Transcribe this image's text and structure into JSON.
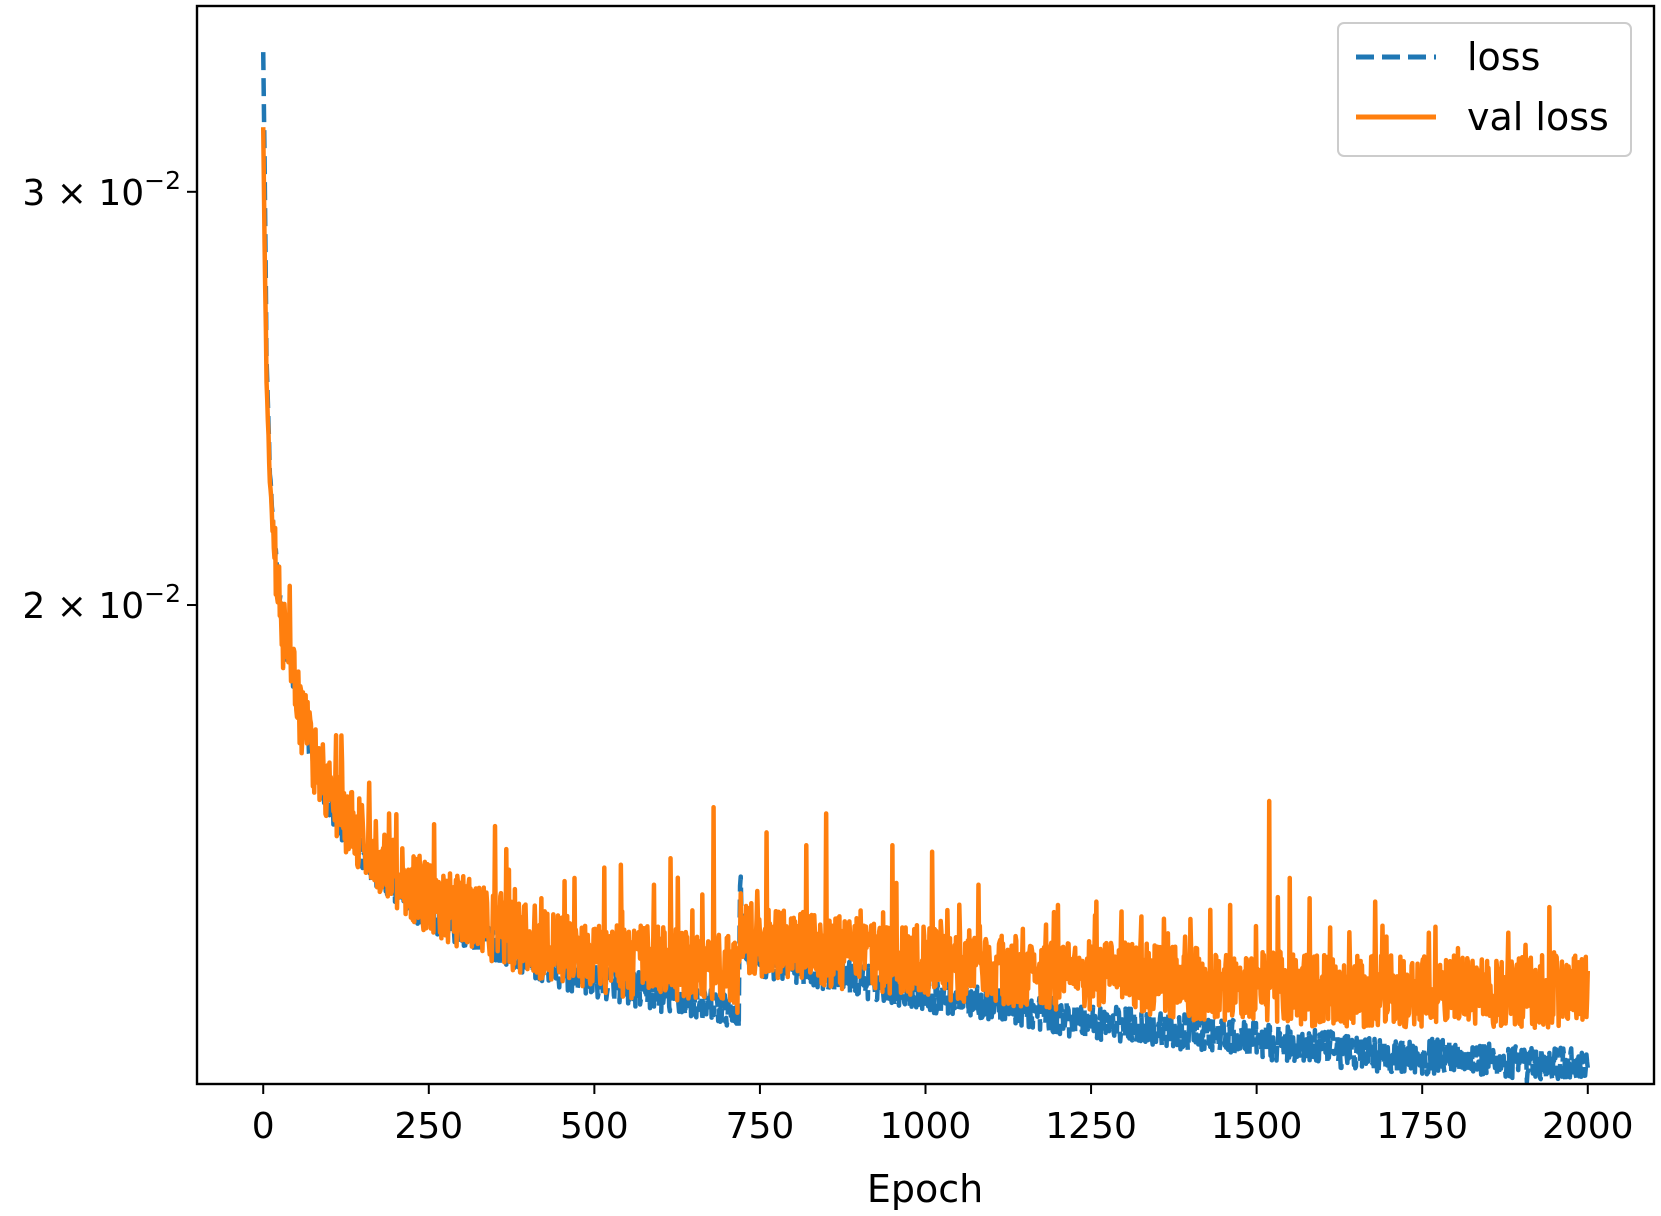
{
  "chart_data": {
    "type": "line",
    "xlabel": "Epoch",
    "ylabel": "",
    "xlim": [
      -100,
      2100
    ],
    "ylim_log": [
      0.0125,
      0.036
    ],
    "yscale": "log",
    "x_ticks": [
      0,
      250,
      500,
      750,
      1000,
      1250,
      1500,
      1750,
      2000
    ],
    "y_ticks": [
      {
        "value": 0.03,
        "label_base": "3 × 10",
        "label_exp": "−2"
      },
      {
        "value": 0.02,
        "label_base": "2 × 10",
        "label_exp": "−2"
      }
    ],
    "legend": {
      "placement": "top-right",
      "frame": true
    },
    "series": [
      {
        "name": "loss",
        "color": "#1f77b4",
        "style": "dashed",
        "x": [
          0,
          2,
          5,
          10,
          20,
          40,
          60,
          80,
          100,
          150,
          200,
          250,
          300,
          350,
          400,
          450,
          500,
          550,
          600,
          650,
          700,
          718,
          720,
          725,
          740,
          800,
          900,
          1000,
          1100,
          1200,
          1300,
          1400,
          1500,
          1600,
          1700,
          1800,
          1900,
          2000
        ],
        "values": [
          0.0345,
          0.031,
          0.0255,
          0.0228,
          0.0205,
          0.0189,
          0.0178,
          0.017,
          0.0164,
          0.0156,
          0.0151,
          0.0147,
          0.0145,
          0.0143,
          0.0141,
          0.0139,
          0.0138,
          0.0137,
          0.0136,
          0.0135,
          0.0134,
          0.0134,
          0.0152,
          0.0143,
          0.0141,
          0.014,
          0.0138,
          0.0136,
          0.0135,
          0.0133,
          0.0132,
          0.0131,
          0.013,
          0.0129,
          0.0128,
          0.0128,
          0.0127,
          0.0127
        ],
        "noise": 0.022,
        "spikes": []
      },
      {
        "name": "val loss",
        "color": "#ff7f0e",
        "style": "solid",
        "x": [
          0,
          2,
          5,
          10,
          20,
          40,
          60,
          80,
          100,
          150,
          200,
          250,
          300,
          350,
          400,
          450,
          500,
          550,
          600,
          650,
          700,
          718,
          720,
          725,
          740,
          800,
          900,
          1000,
          1100,
          1200,
          1300,
          1400,
          1500,
          1600,
          1700,
          1800,
          1900,
          2000
        ],
        "values": [
          0.032,
          0.0285,
          0.025,
          0.0225,
          0.0203,
          0.0187,
          0.0177,
          0.017,
          0.0165,
          0.0158,
          0.0153,
          0.0149,
          0.0147,
          0.0145,
          0.0143,
          0.0142,
          0.0141,
          0.014,
          0.014,
          0.0139,
          0.0139,
          0.0137,
          0.0147,
          0.0144,
          0.0143,
          0.0142,
          0.0141,
          0.014,
          0.0139,
          0.0138,
          0.0138,
          0.0137,
          0.0137,
          0.0136,
          0.0136,
          0.0136,
          0.0136,
          0.0136
        ],
        "noise": 0.045,
        "spikes": [
          [
            30,
            0.0188
          ],
          [
            70,
            0.018
          ],
          [
            110,
            0.0176
          ],
          [
            160,
            0.0168
          ],
          [
            190,
            0.0163
          ],
          [
            245,
            0.0155
          ],
          [
            350,
            0.0161
          ],
          [
            420,
            0.015
          ],
          [
            470,
            0.0153
          ],
          [
            540,
            0.0155
          ],
          [
            590,
            0.0152
          ],
          [
            615,
            0.0156
          ],
          [
            680,
            0.0164
          ],
          [
            760,
            0.016
          ],
          [
            820,
            0.0158
          ],
          [
            850,
            0.0163
          ],
          [
            950,
            0.0158
          ],
          [
            1010,
            0.0157
          ],
          [
            1080,
            0.0152
          ],
          [
            1200,
            0.0149
          ],
          [
            1360,
            0.0147
          ],
          [
            1460,
            0.0149
          ],
          [
            1519,
            0.0165
          ],
          [
            1550,
            0.0153
          ],
          [
            1580,
            0.015
          ],
          [
            1690,
            0.0146
          ],
          [
            1760,
            0.0145
          ],
          [
            1880,
            0.0145
          ]
        ]
      }
    ]
  }
}
